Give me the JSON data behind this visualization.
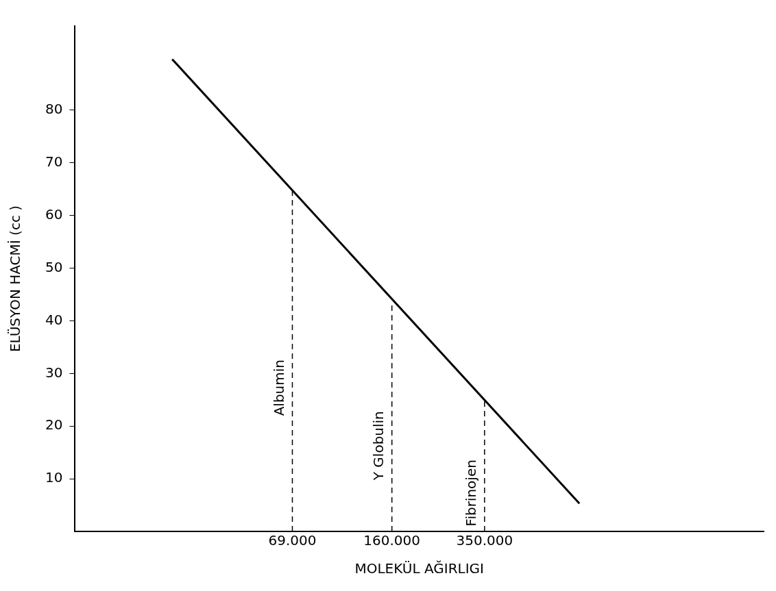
{
  "chart_data": {
    "type": "line",
    "xlabel": "MOLEKÜL AĞIRLIGI",
    "ylabel": "ELÜSYON HACMİ (cc )",
    "log": "x",
    "xlim": [
      11000,
      3700000
    ],
    "xticks": [
      {
        "value": 69000,
        "label": "69.000"
      },
      {
        "value": 160000,
        "label": "160.000"
      },
      {
        "value": 350000,
        "label": "350.000"
      }
    ],
    "ylim": [
      0,
      96
    ],
    "yticks": [
      10,
      20,
      30,
      40,
      50,
      60,
      70,
      80
    ],
    "grid": false,
    "legend": false,
    "marker": "none",
    "series": [
      {
        "color": "#000000",
        "x": [
          25000,
          780000
        ],
        "values": [
          89.7,
          5.3
        ],
        "line_style": "solid"
      },
      {
        "name": "Albumin",
        "color": "#000000",
        "x": [
          69000,
          69000
        ],
        "values": [
          0,
          65
        ],
        "line_style": "dashed"
      },
      {
        "name": "Y Globulin",
        "color": "#000000",
        "x": [
          160000,
          160000
        ],
        "values": [
          0,
          43
        ],
        "line_style": "dashed"
      },
      {
        "name": "Fibrinojen",
        "color": "#000000",
        "x": [
          350000,
          350000
        ],
        "values": [
          0,
          25
        ],
        "line_style": "dashed"
      }
    ]
  }
}
